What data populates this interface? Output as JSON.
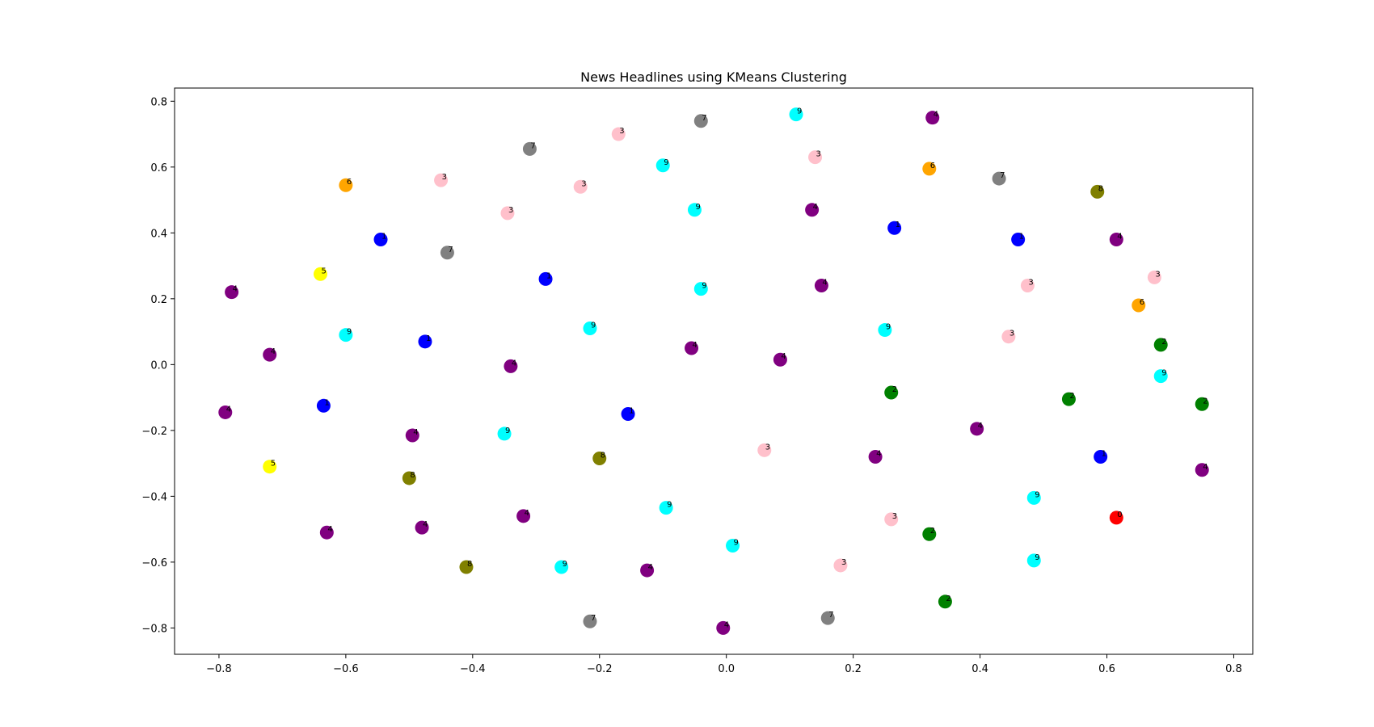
{
  "chart_data": {
    "type": "scatter",
    "title": "News Headlines using KMeans Clustering",
    "xlabel": "",
    "ylabel": "",
    "xlim": [
      -0.87,
      0.83
    ],
    "ylim": [
      -0.88,
      0.84
    ],
    "xticks": [
      -0.8,
      -0.6,
      -0.4,
      -0.2,
      0.0,
      0.2,
      0.4,
      0.6,
      0.8
    ],
    "xtick_labels": [
      "−0.8",
      "−0.6",
      "−0.4",
      "−0.2",
      "0.0",
      "0.2",
      "0.4",
      "0.6",
      "0.8"
    ],
    "yticks": [
      -0.8,
      -0.6,
      -0.4,
      -0.2,
      0.0,
      0.2,
      0.4,
      0.6,
      0.8
    ],
    "ytick_labels": [
      "−0.8",
      "−0.6",
      "−0.4",
      "−0.2",
      "0.0",
      "0.2",
      "0.4",
      "0.6",
      "0.8"
    ],
    "grid": false,
    "cluster_colors": {
      "0": "#ff0000",
      "1": "#0000ff",
      "2": "#008000",
      "3": "#ffc0cb",
      "4": "#800080",
      "5": "#ffff00",
      "6": "#ffa500",
      "7": "#808080",
      "8": "#808000",
      "9": "#00ffff"
    },
    "points": [
      {
        "x": -0.78,
        "y": 0.22,
        "cluster": 4
      },
      {
        "x": -0.72,
        "y": 0.03,
        "cluster": 4
      },
      {
        "x": -0.79,
        "y": -0.145,
        "cluster": 4
      },
      {
        "x": -0.64,
        "y": 0.275,
        "cluster": 5
      },
      {
        "x": -0.72,
        "y": -0.31,
        "cluster": 5
      },
      {
        "x": -0.6,
        "y": 0.545,
        "cluster": 6
      },
      {
        "x": -0.545,
        "y": 0.38,
        "cluster": 1
      },
      {
        "x": -0.6,
        "y": 0.09,
        "cluster": 9
      },
      {
        "x": -0.635,
        "y": -0.125,
        "cluster": 1
      },
      {
        "x": -0.63,
        "y": -0.51,
        "cluster": 4
      },
      {
        "x": -0.45,
        "y": 0.56,
        "cluster": 3
      },
      {
        "x": -0.44,
        "y": 0.34,
        "cluster": 7
      },
      {
        "x": -0.475,
        "y": 0.07,
        "cluster": 1
      },
      {
        "x": -0.495,
        "y": -0.215,
        "cluster": 4
      },
      {
        "x": -0.5,
        "y": -0.345,
        "cluster": 8
      },
      {
        "x": -0.48,
        "y": -0.495,
        "cluster": 4
      },
      {
        "x": -0.41,
        "y": -0.615,
        "cluster": 8
      },
      {
        "x": -0.31,
        "y": 0.655,
        "cluster": 7
      },
      {
        "x": -0.345,
        "y": 0.46,
        "cluster": 3
      },
      {
        "x": -0.285,
        "y": 0.26,
        "cluster": 1
      },
      {
        "x": -0.34,
        "y": -0.005,
        "cluster": 4
      },
      {
        "x": -0.35,
        "y": -0.21,
        "cluster": 9
      },
      {
        "x": -0.32,
        "y": -0.46,
        "cluster": 4
      },
      {
        "x": -0.26,
        "y": -0.615,
        "cluster": 9
      },
      {
        "x": -0.17,
        "y": 0.7,
        "cluster": 3
      },
      {
        "x": -0.23,
        "y": 0.54,
        "cluster": 3
      },
      {
        "x": -0.215,
        "y": 0.11,
        "cluster": 9
      },
      {
        "x": -0.155,
        "y": -0.15,
        "cluster": 1
      },
      {
        "x": -0.2,
        "y": -0.285,
        "cluster": 8
      },
      {
        "x": -0.215,
        "y": -0.78,
        "cluster": 7
      },
      {
        "x": -0.04,
        "y": 0.74,
        "cluster": 7
      },
      {
        "x": -0.1,
        "y": 0.605,
        "cluster": 9
      },
      {
        "x": -0.05,
        "y": 0.47,
        "cluster": 9
      },
      {
        "x": -0.04,
        "y": 0.23,
        "cluster": 9
      },
      {
        "x": -0.055,
        "y": 0.05,
        "cluster": 4
      },
      {
        "x": -0.095,
        "y": -0.435,
        "cluster": 9
      },
      {
        "x": -0.125,
        "y": -0.625,
        "cluster": 4
      },
      {
        "x": 0.01,
        "y": -0.55,
        "cluster": 9
      },
      {
        "x": -0.005,
        "y": -0.8,
        "cluster": 4
      },
      {
        "x": 0.11,
        "y": 0.76,
        "cluster": 9
      },
      {
        "x": 0.14,
        "y": 0.63,
        "cluster": 3
      },
      {
        "x": 0.135,
        "y": 0.47,
        "cluster": 4
      },
      {
        "x": 0.15,
        "y": 0.24,
        "cluster": 4
      },
      {
        "x": 0.085,
        "y": 0.015,
        "cluster": 4
      },
      {
        "x": 0.06,
        "y": -0.26,
        "cluster": 3
      },
      {
        "x": 0.18,
        "y": -0.61,
        "cluster": 3
      },
      {
        "x": 0.16,
        "y": -0.77,
        "cluster": 7
      },
      {
        "x": 0.325,
        "y": 0.75,
        "cluster": 4
      },
      {
        "x": 0.32,
        "y": 0.595,
        "cluster": 6
      },
      {
        "x": 0.265,
        "y": 0.415,
        "cluster": 1
      },
      {
        "x": 0.25,
        "y": 0.105,
        "cluster": 9
      },
      {
        "x": 0.26,
        "y": -0.085,
        "cluster": 2
      },
      {
        "x": 0.235,
        "y": -0.28,
        "cluster": 4
      },
      {
        "x": 0.26,
        "y": -0.47,
        "cluster": 3
      },
      {
        "x": 0.32,
        "y": -0.515,
        "cluster": 2
      },
      {
        "x": 0.345,
        "y": -0.72,
        "cluster": 2
      },
      {
        "x": 0.43,
        "y": 0.565,
        "cluster": 7
      },
      {
        "x": 0.46,
        "y": 0.38,
        "cluster": 1
      },
      {
        "x": 0.475,
        "y": 0.24,
        "cluster": 3
      },
      {
        "x": 0.445,
        "y": 0.085,
        "cluster": 3
      },
      {
        "x": 0.395,
        "y": -0.195,
        "cluster": 4
      },
      {
        "x": 0.485,
        "y": -0.405,
        "cluster": 9
      },
      {
        "x": 0.485,
        "y": -0.595,
        "cluster": 9
      },
      {
        "x": 0.585,
        "y": 0.525,
        "cluster": 8
      },
      {
        "x": 0.615,
        "y": 0.38,
        "cluster": 4
      },
      {
        "x": 0.54,
        "y": -0.105,
        "cluster": 2
      },
      {
        "x": 0.59,
        "y": -0.28,
        "cluster": 1
      },
      {
        "x": 0.615,
        "y": -0.465,
        "cluster": 0
      },
      {
        "x": 0.675,
        "y": 0.265,
        "cluster": 3
      },
      {
        "x": 0.65,
        "y": 0.18,
        "cluster": 6
      },
      {
        "x": 0.685,
        "y": 0.06,
        "cluster": 2
      },
      {
        "x": 0.685,
        "y": -0.035,
        "cluster": 9
      },
      {
        "x": 0.75,
        "y": -0.12,
        "cluster": 2
      },
      {
        "x": 0.75,
        "y": -0.32,
        "cluster": 4
      }
    ]
  }
}
